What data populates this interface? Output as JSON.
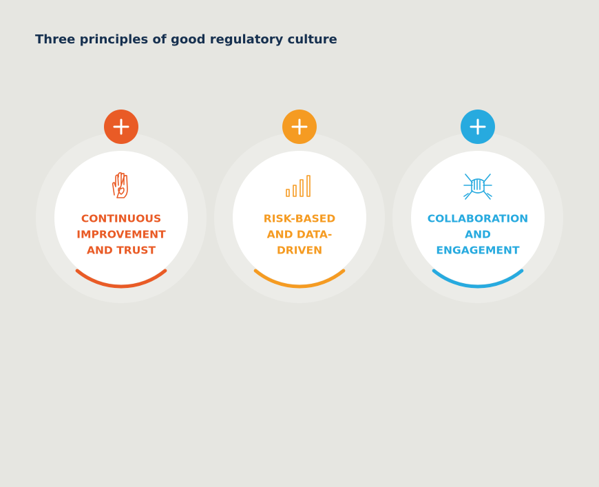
{
  "title": "Three principles of good regulatory culture",
  "cards": [
    {
      "lines": [
        "CONTINUOUS",
        "IMPROVEMENT",
        "AND TRUST"
      ],
      "color": "#e95b26"
    },
    {
      "lines": [
        "RISK-BASED",
        "AND DATA-",
        "DRIVEN"
      ],
      "color": "#f59b22"
    },
    {
      "lines": [
        "COLLABORATION",
        "AND",
        "ENGAGEMENT"
      ],
      "color": "#27aadf"
    }
  ]
}
